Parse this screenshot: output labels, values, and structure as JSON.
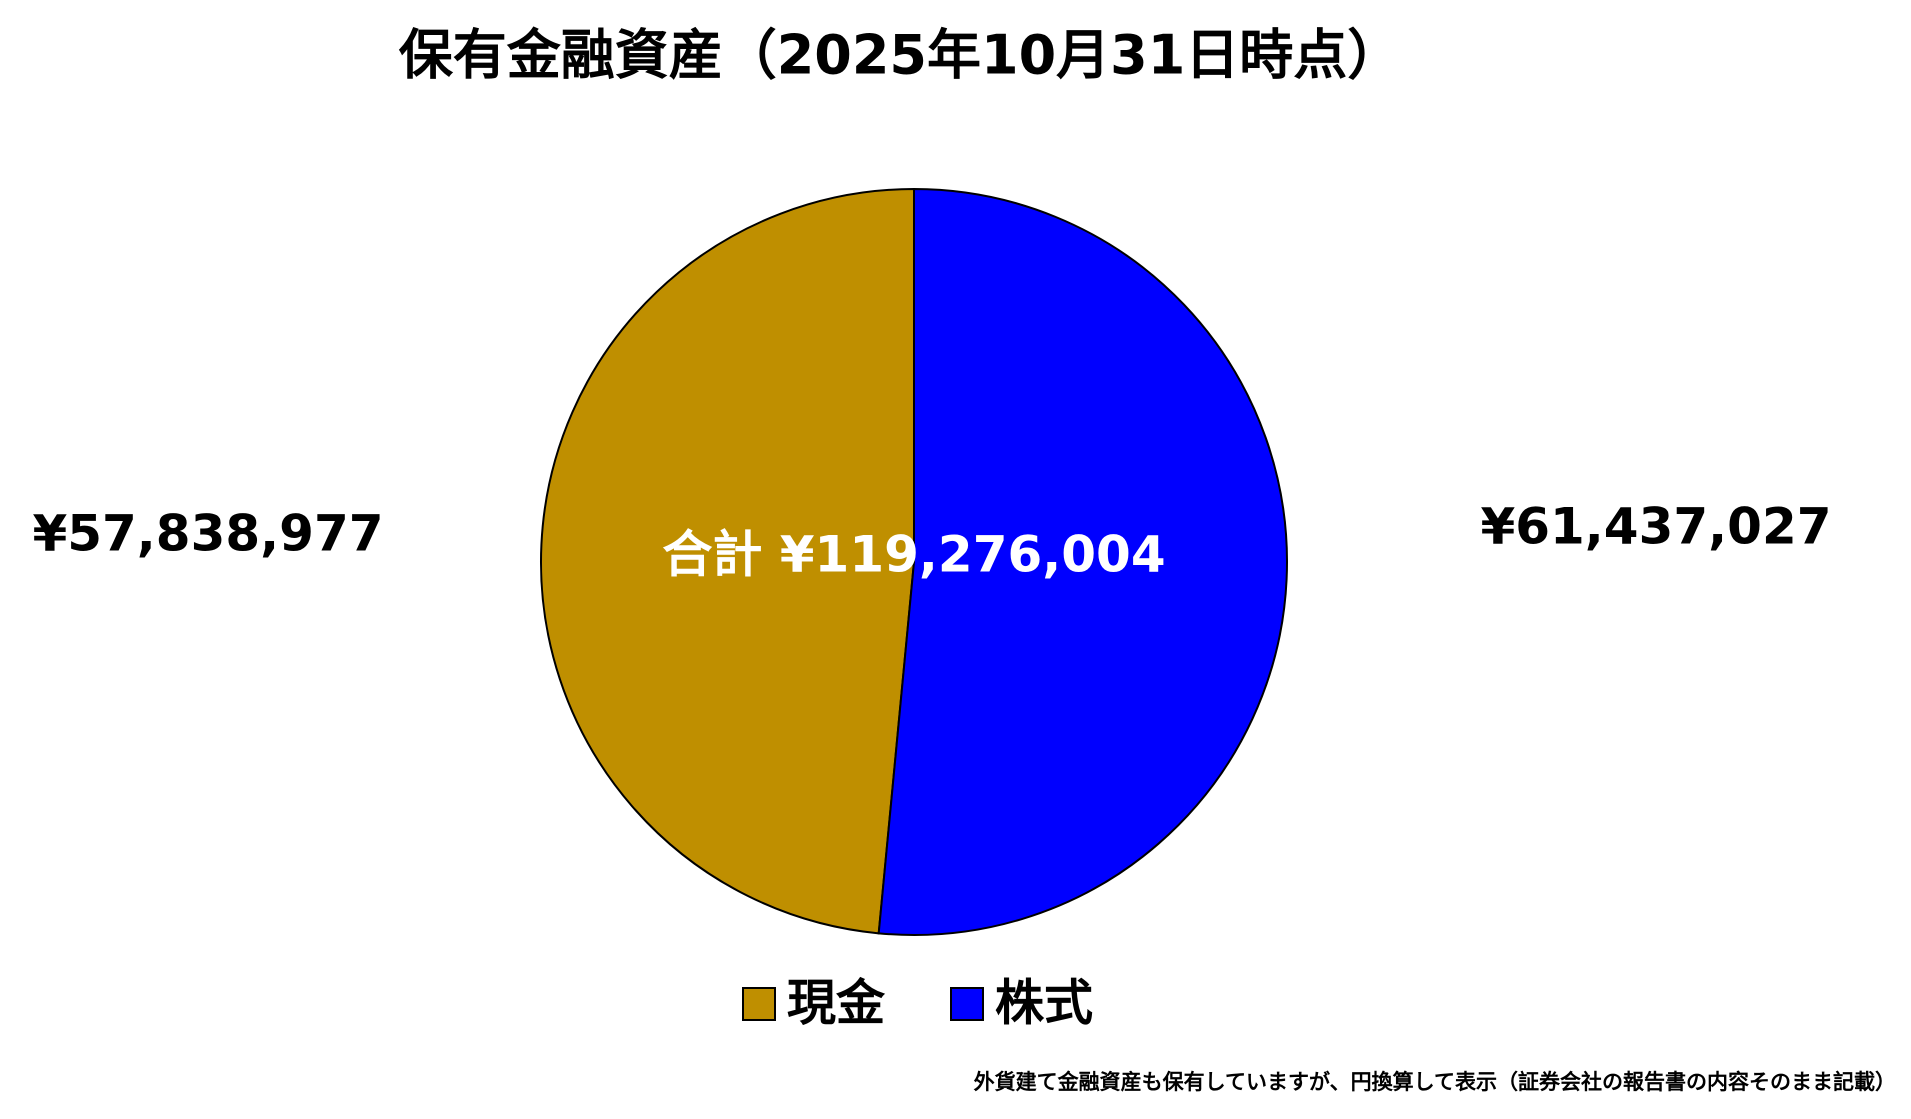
{
  "chart_data": {
    "type": "pie",
    "title": "保有金融資産（2025年10月31日時点）",
    "categories": [
      "現金",
      "株式"
    ],
    "values": [
      57838977,
      61437027
    ],
    "value_labels": [
      "¥57,838,977",
      "¥61,437,027"
    ],
    "colors": [
      "#bf8f00",
      "#0000ff"
    ],
    "total_label": "合計 ¥119,276,004",
    "legend": "bottom",
    "footnote": "外貨建て金融資産も保有していますが、円換算して表示（証券会社の報告書の内容そのまま記載）"
  }
}
